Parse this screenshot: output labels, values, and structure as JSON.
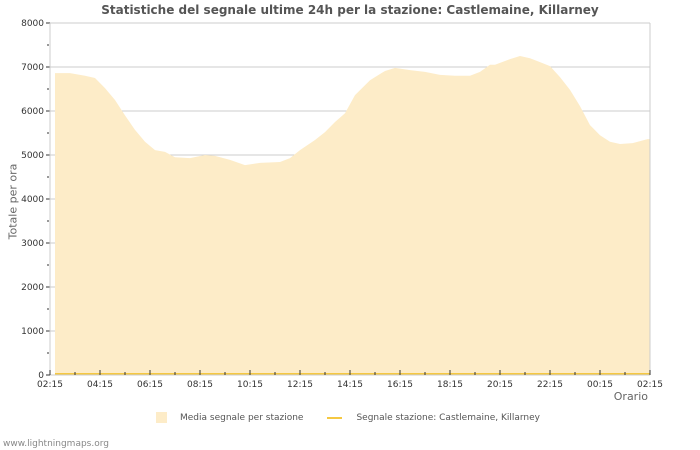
{
  "title": "Statistiche del segnale ultime 24h per la stazione: Castlemaine, Killarney",
  "footer": "www.lightningmaps.org",
  "colors": {
    "area_fill": "#fdecc8",
    "station_line": "#f5c842",
    "grid": "#cccccc",
    "text": "#555555"
  },
  "legend": {
    "area_label": "Media segnale per stazione",
    "line_label": "Segnale stazione: Castlemaine, Killarney"
  },
  "chart_data": {
    "type": "area",
    "title": "Statistiche del segnale ultime 24h per la stazione: Castlemaine, Killarney",
    "xlabel": "Orario",
    "ylabel": "Totale per ora",
    "ylim": [
      0,
      8000
    ],
    "yticks": [
      0,
      1000,
      2000,
      3000,
      4000,
      5000,
      6000,
      7000,
      8000
    ],
    "xticks": [
      "02:15",
      "04:15",
      "06:15",
      "08:15",
      "10:15",
      "12:15",
      "14:15",
      "16:15",
      "18:15",
      "20:15",
      "22:15",
      "00:15",
      "02:15"
    ],
    "grid": true,
    "legend_position": "bottom",
    "series": [
      {
        "name": "Media segnale per stazione",
        "type": "area",
        "x_hours_from_start": [
          0.2,
          0.8,
          1.4,
          1.8,
          2.2,
          2.6,
          3.0,
          3.4,
          3.8,
          4.2,
          4.6,
          5.0,
          5.6,
          6.2,
          6.6,
          7.2,
          7.8,
          8.4,
          9.2,
          9.6,
          10.0,
          10.6,
          11.0,
          11.4,
          11.8,
          12.2,
          12.8,
          13.4,
          13.8,
          14.4,
          15.0,
          15.6,
          16.2,
          16.8,
          17.2,
          17.6,
          17.8,
          18.4,
          18.8,
          19.2,
          19.6,
          20.0,
          20.4,
          20.8,
          21.2,
          21.6,
          22.0,
          22.4,
          22.8,
          23.3,
          23.9
        ],
        "values": [
          6860,
          6860,
          6800,
          6750,
          6520,
          6250,
          5900,
          5570,
          5300,
          5110,
          5070,
          4950,
          4930,
          5000,
          4980,
          4890,
          4770,
          4820,
          4840,
          4930,
          5110,
          5340,
          5520,
          5750,
          5950,
          6360,
          6700,
          6910,
          6980,
          6930,
          6890,
          6820,
          6800,
          6800,
          6890,
          7050,
          7050,
          7180,
          7250,
          7200,
          7110,
          7020,
          6770,
          6480,
          6110,
          5680,
          5450,
          5300,
          5250,
          5270,
          5360
        ]
      },
      {
        "name": "Segnale stazione: Castlemaine, Killarney",
        "type": "line",
        "values_note": "near zero across range",
        "values": [
          0,
          0,
          0,
          0,
          0,
          0,
          0,
          0,
          0,
          0,
          0,
          0,
          0
        ]
      }
    ]
  }
}
